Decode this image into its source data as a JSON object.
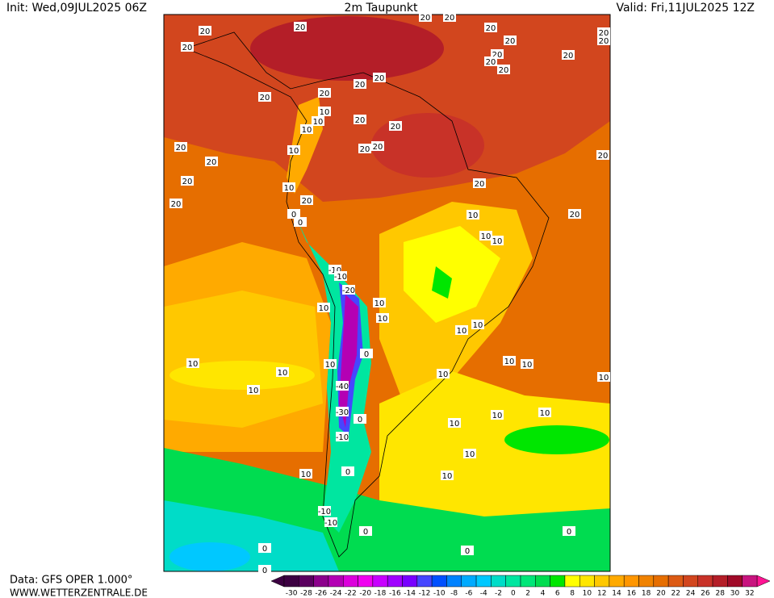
{
  "header": {
    "init": "Init: Wed,09JUL2025 06Z",
    "title": "2m Taupunkt",
    "valid": "Valid: Fri,11JUL2025 12Z"
  },
  "footer": {
    "data": "Data: GFS OPER 1.000°",
    "site": "WWW.WETTERZENTRALE.DE"
  },
  "colorbar": {
    "levels": [
      -30,
      -28,
      -26,
      -24,
      -22,
      -20,
      -18,
      -16,
      -14,
      -12,
      -10,
      -8,
      -6,
      -4,
      -2,
      0,
      2,
      4,
      6,
      8,
      10,
      12,
      14,
      16,
      18,
      20,
      22,
      24,
      26,
      28,
      30,
      32
    ],
    "colors": [
      "#3c0041",
      "#5a005f",
      "#8c008c",
      "#b400b4",
      "#dc00dc",
      "#f000f0",
      "#c800ff",
      "#a000ff",
      "#7800ff",
      "#4646ff",
      "#0050ff",
      "#0082ff",
      "#00aaff",
      "#00c8ff",
      "#00dcc8",
      "#00e6a0",
      "#00e678",
      "#00dc50",
      "#00e600",
      "#ffff00",
      "#ffe600",
      "#ffc800",
      "#ffaa00",
      "#ff9600",
      "#f08200",
      "#e66e00",
      "#dc5a14",
      "#d2461e",
      "#c83228",
      "#b41e28",
      "#a00a28",
      "#c8147f"
    ],
    "low_color": "#3c0041",
    "high_color": "#ff1493"
  },
  "contour_labels": [
    20,
    20,
    20,
    20,
    20,
    10,
    10,
    10,
    10,
    20,
    20,
    20,
    20,
    10,
    20,
    0,
    0,
    20,
    20,
    20,
    20,
    20,
    20,
    20,
    10,
    10,
    10,
    20,
    20,
    20,
    20,
    20,
    20,
    20,
    20,
    20,
    20,
    20,
    20,
    -10,
    -10,
    -20,
    10,
    10,
    10,
    0,
    10,
    10,
    10,
    10,
    -40,
    -30,
    0,
    -10,
    10,
    10,
    10,
    10,
    10,
    10,
    10,
    10,
    10,
    10,
    10,
    10,
    0,
    -10,
    -10,
    0,
    0,
    0,
    0,
    0
  ]
}
